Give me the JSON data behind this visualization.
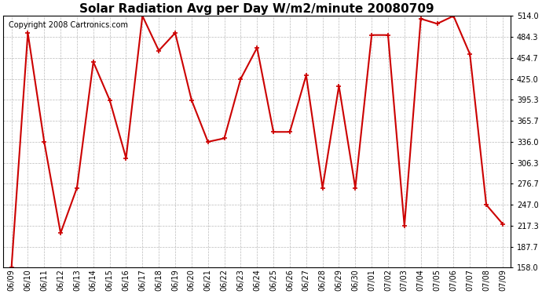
{
  "title": "Solar Radiation Avg per Day W/m2/minute 20080709",
  "copyright": "Copyright 2008 Cartronics.com",
  "labels": [
    "06/09",
    "06/10",
    "06/11",
    "06/12",
    "06/13",
    "06/14",
    "06/15",
    "06/16",
    "06/17",
    "06/18",
    "06/19",
    "06/20",
    "06/21",
    "06/22",
    "06/23",
    "06/24",
    "06/25",
    "06/26",
    "06/27",
    "06/28",
    "06/29",
    "06/30",
    "07/01",
    "07/02",
    "07/03",
    "07/04",
    "07/05",
    "07/06",
    "07/07",
    "07/08",
    "07/09"
  ],
  "values": [
    158.0,
    490.0,
    336.0,
    207.0,
    271.0,
    449.0,
    395.0,
    313.0,
    514.0,
    465.0,
    490.0,
    395.0,
    336.0,
    341.0,
    425.0,
    469.0,
    350.0,
    350.0,
    430.0,
    271.0,
    415.0,
    271.0,
    487.0,
    487.0,
    217.0,
    510.0,
    503.0,
    514.0,
    460.0,
    247.0,
    220.0
  ],
  "line_color": "#cc0000",
  "marker": "+",
  "marker_size": 5,
  "marker_color": "#cc0000",
  "bg_color": "#ffffff",
  "grid_color": "#bbbbbb",
  "ylim": [
    158.0,
    514.0
  ],
  "yticks": [
    158.0,
    187.7,
    217.3,
    247.0,
    276.7,
    306.3,
    336.0,
    365.7,
    395.3,
    425.0,
    454.7,
    484.3,
    514.0
  ],
  "title_fontsize": 11,
  "copyright_fontsize": 7,
  "tick_fontsize": 7,
  "linewidth": 1.5
}
